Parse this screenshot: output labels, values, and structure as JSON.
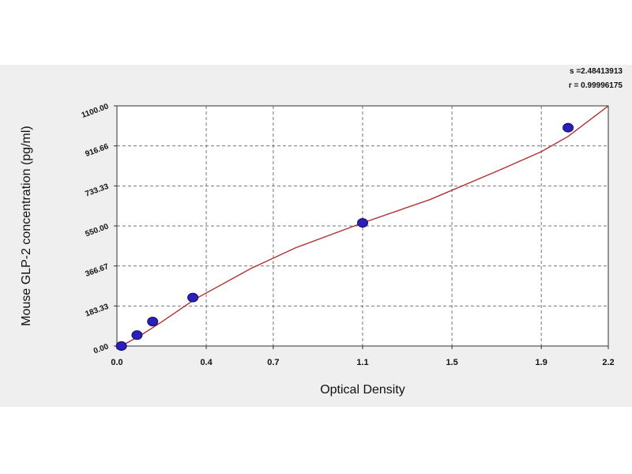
{
  "stats": {
    "s_line": "s =2.48413913",
    "r_line": "r = 0.99996175"
  },
  "chart_data": {
    "type": "scatter",
    "xlabel": "Optical Density",
    "ylabel": "Mouse GLP-2 concentration (pg/ml)",
    "xlim": [
      0.0,
      2.2
    ],
    "ylim": [
      0.0,
      1100.0
    ],
    "x_ticks": [
      0.0,
      0.4,
      0.7,
      1.1,
      1.5,
      1.9,
      2.2
    ],
    "x_tick_labels": [
      "0.0",
      "0.4",
      "0.7",
      "1.1",
      "1.5",
      "1.9",
      "2.2"
    ],
    "y_ticks": [
      0.0,
      183.33,
      366.67,
      550.0,
      733.33,
      916.66,
      1100.0
    ],
    "y_tick_labels": [
      "0.00",
      "183.33",
      "366.67",
      "550.00",
      "733.33",
      "916.66",
      "1100.00"
    ],
    "grid": true,
    "series": [
      {
        "kind": "points",
        "color": "#2b1fb8",
        "x": [
          0.02,
          0.09,
          0.16,
          0.34,
          1.1,
          2.02
        ],
        "y": [
          0,
          50,
          112,
          222,
          564,
          1000
        ]
      },
      {
        "kind": "fit",
        "color": "#b03030",
        "x": [
          0.0,
          0.1,
          0.2,
          0.35,
          0.6,
          0.8,
          1.1,
          1.4,
          1.7,
          1.9,
          2.02,
          2.2
        ],
        "y": [
          -10,
          45,
          110,
          215,
          355,
          450,
          564,
          670,
          800,
          890,
          960,
          1100
        ]
      }
    ]
  }
}
